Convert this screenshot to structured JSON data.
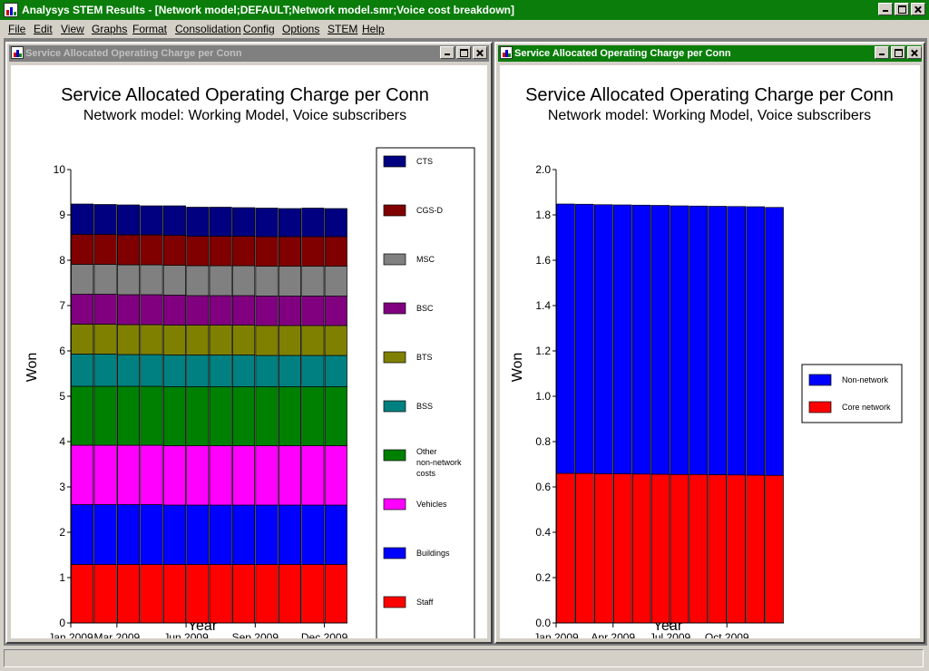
{
  "app": {
    "title": "Analysys STEM Results - [Network model;DEFAULT;Network model.smr;Voice cost breakdown]",
    "menu": [
      "File",
      "Edit",
      "View",
      "Graphs",
      "Format",
      "Consolidation",
      "Config",
      "Options",
      "STEM",
      "Help"
    ]
  },
  "windows": [
    {
      "title": "Service Allocated Operating Charge per Conn",
      "state": "inactive",
      "chart_data": {
        "type": "bar",
        "stacked": true,
        "title": "Service Allocated Operating Charge per Conn",
        "subtitle": "Network model:  Working Model, Voice subscribers",
        "xlabel": "Year",
        "ylabel": "Won",
        "ylim": [
          0,
          10
        ],
        "yticks": [
          "0",
          "1",
          "2",
          "3",
          "4",
          "5",
          "6",
          "7",
          "8",
          "9",
          "10"
        ],
        "categories": [
          "Jan 2009",
          "Feb 2009",
          "Mar 2009",
          "Apr 2009",
          "May 2009",
          "Jun 2009",
          "Jul 2009",
          "Aug 2009",
          "Sep 2009",
          "Oct 2009",
          "Nov 2009",
          "Dec 2009"
        ],
        "xtick_labels": [
          {
            "i": 0,
            "label": "Jan 2009"
          },
          {
            "i": 2,
            "label": "Mar 2009"
          },
          {
            "i": 5,
            "label": "Jun 2009"
          },
          {
            "i": 8,
            "label": "Sep 2009"
          },
          {
            "i": 11,
            "label": "Dec 2009"
          }
        ],
        "legend_position": "right",
        "grid": false,
        "series": [
          {
            "name": "Staff",
            "color": "#ff0000",
            "values": [
              1.29,
              1.29,
              1.29,
              1.29,
              1.29,
              1.29,
              1.29,
              1.29,
              1.29,
              1.29,
              1.29,
              1.29
            ]
          },
          {
            "name": "Buildings",
            "color": "#0000ff",
            "values": [
              1.32,
              1.32,
              1.32,
              1.32,
              1.31,
              1.31,
              1.31,
              1.31,
              1.31,
              1.31,
              1.31,
              1.31
            ]
          },
          {
            "name": "Vehicles",
            "color": "#ff00ff",
            "values": [
              1.31,
              1.31,
              1.31,
              1.31,
              1.31,
              1.31,
              1.31,
              1.31,
              1.31,
              1.31,
              1.31,
              1.31
            ]
          },
          {
            "name": "Other non-network costs",
            "color": "#008000",
            "values": [
              1.3,
              1.3,
              1.3,
              1.3,
              1.3,
              1.3,
              1.3,
              1.3,
              1.3,
              1.3,
              1.3,
              1.3
            ]
          },
          {
            "name": "BSS",
            "color": "#008080",
            "values": [
              0.71,
              0.71,
              0.7,
              0.7,
              0.7,
              0.7,
              0.7,
              0.7,
              0.69,
              0.69,
              0.69,
              0.69
            ]
          },
          {
            "name": "BTS",
            "color": "#808000",
            "values": [
              0.66,
              0.66,
              0.66,
              0.66,
              0.66,
              0.66,
              0.66,
              0.66,
              0.66,
              0.66,
              0.66,
              0.66
            ]
          },
          {
            "name": "BSC",
            "color": "#800080",
            "values": [
              0.66,
              0.66,
              0.66,
              0.66,
              0.66,
              0.65,
              0.65,
              0.65,
              0.65,
              0.65,
              0.65,
              0.65
            ]
          },
          {
            "name": "MSC",
            "color": "#808080",
            "values": [
              0.66,
              0.66,
              0.66,
              0.66,
              0.66,
              0.66,
              0.66,
              0.66,
              0.66,
              0.66,
              0.66,
              0.66
            ]
          },
          {
            "name": "CGS-D",
            "color": "#800000",
            "values": [
              0.66,
              0.66,
              0.66,
              0.66,
              0.66,
              0.65,
              0.65,
              0.65,
              0.65,
              0.65,
              0.65,
              0.65
            ]
          },
          {
            "name": "CTS",
            "color": "#000080",
            "values": [
              0.67,
              0.66,
              0.66,
              0.64,
              0.65,
              0.64,
              0.64,
              0.63,
              0.63,
              0.62,
              0.63,
              0.62
            ]
          }
        ]
      }
    },
    {
      "title": "Service Allocated Operating Charge per Conn",
      "state": "active",
      "chart_data": {
        "type": "bar",
        "stacked": true,
        "title": "Service Allocated Operating Charge per Conn",
        "subtitle": "Network model:  Working Model, Voice subscribers",
        "xlabel": "Year",
        "ylabel": "Won",
        "ylim": [
          0,
          2
        ],
        "yticks": [
          "0.0",
          "0.2",
          "0.4",
          "0.6",
          "0.8",
          "1.0",
          "1.2",
          "1.4",
          "1.6",
          "1.8",
          "2.0"
        ],
        "categories": [
          "Jan 2009",
          "Feb 2009",
          "Mar 2009",
          "Apr 2009",
          "May 2009",
          "Jun 2009",
          "Jul 2009",
          "Aug 2009",
          "Sep 2009",
          "Oct 2009",
          "Nov 2009",
          "Dec 2009"
        ],
        "xtick_labels": [
          {
            "i": 0,
            "label": "Jan 2009"
          },
          {
            "i": 3,
            "label": "Apr 2009"
          },
          {
            "i": 6,
            "label": "Jul 2009"
          },
          {
            "i": 9,
            "label": "Oct 2009"
          }
        ],
        "legend_position": "right",
        "grid": false,
        "series": [
          {
            "name": "Core network",
            "color": "#ff0000",
            "values": [
              0.66,
              0.66,
              0.658,
              0.658,
              0.657,
              0.656,
              0.655,
              0.655,
              0.654,
              0.653,
              0.652,
              0.651
            ]
          },
          {
            "name": "Non-network",
            "color": "#0000ff",
            "values": [
              1.188,
              1.187,
              1.187,
              1.186,
              1.186,
              1.186,
              1.185,
              1.184,
              1.184,
              1.184,
              1.184,
              1.182
            ]
          }
        ]
      }
    }
  ]
}
